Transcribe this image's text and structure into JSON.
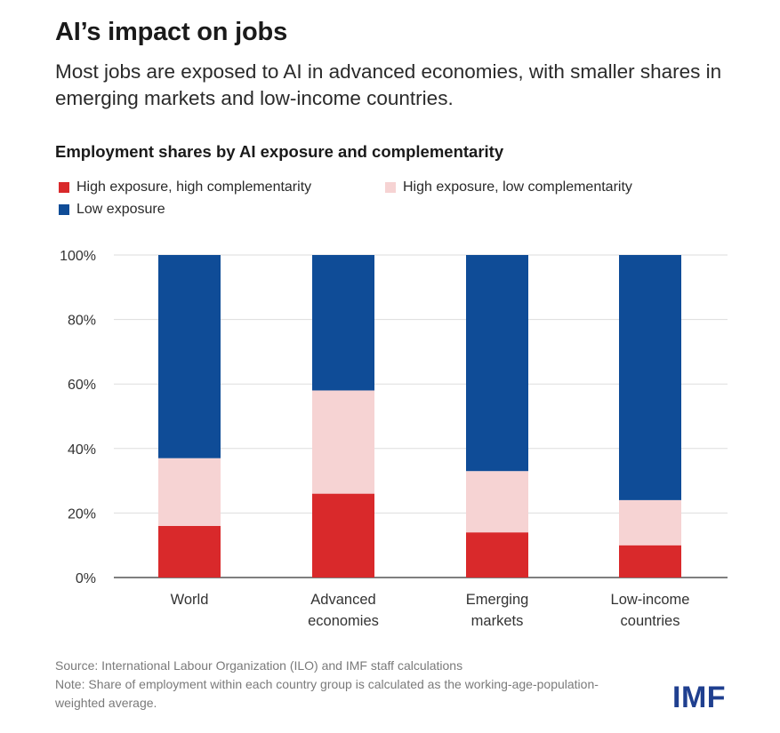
{
  "title": "AI’s impact on jobs",
  "subtitle": "Most jobs are exposed to AI in advanced economies, with smaller shares in emerging markets and low-income countries.",
  "chart_data": {
    "type": "bar",
    "stacked": true,
    "title": "Employment shares by AI exposure and complementarity",
    "categories": [
      [
        "World"
      ],
      [
        "Advanced",
        "economies"
      ],
      [
        "Emerging",
        "markets"
      ],
      [
        "Low-income",
        "countries"
      ]
    ],
    "series": [
      {
        "name": "High exposure, high complementarity",
        "color": "#d9292b",
        "values": [
          16,
          26,
          14,
          10
        ]
      },
      {
        "name": "High exposure, low complementarity",
        "color": "#f6d3d3",
        "values": [
          21,
          32,
          19,
          14
        ]
      },
      {
        "name": "Low exposure",
        "color": "#0f4c97",
        "values": [
          63,
          42,
          67,
          76
        ]
      }
    ],
    "yticks": [
      "0%",
      "20%",
      "40%",
      "60%",
      "80%",
      "100%"
    ],
    "ylim": [
      0,
      100
    ],
    "grid": true,
    "legend_position": "top-left"
  },
  "footer": {
    "source": "Source: International Labour Organization (ILO) and IMF staff calculations",
    "note": "Note: Share of employment within each country group is calculated as the working-age-population-weighted average."
  },
  "logo_text": "IMF"
}
